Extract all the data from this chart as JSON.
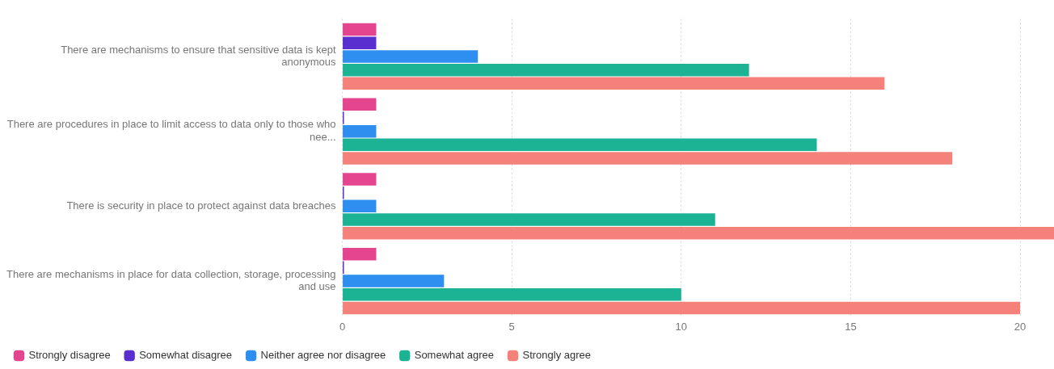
{
  "chart_data": {
    "type": "bar",
    "orientation": "horizontal",
    "categories": [
      "There are mechanisms to ensure that sensitive data is kept anonymous",
      "There are procedures in place to limit access to data only to those who nee...",
      "There is security in place to protect against data breaches",
      "There are mechanisms in place for data collection, storage, processing and use"
    ],
    "series": [
      {
        "name": "Strongly disagree",
        "color": "#e5458f",
        "values": [
          1,
          1,
          1,
          1
        ]
      },
      {
        "name": "Somewhat disagree",
        "color": "#5a2fcf",
        "values": [
          1,
          0,
          0,
          0
        ]
      },
      {
        "name": "Neither agree nor disagree",
        "color": "#2f8ff0",
        "values": [
          4,
          1,
          1,
          3
        ]
      },
      {
        "name": "Somewhat agree",
        "color": "#1bb394",
        "values": [
          12,
          14,
          11,
          10
        ]
      },
      {
        "name": "Strongly agree",
        "color": "#f4827b",
        "values": [
          16,
          18,
          21,
          20
        ]
      }
    ],
    "xlim": [
      0,
      21
    ],
    "xticks": [
      0,
      5,
      10,
      15,
      20
    ],
    "grid": "x",
    "legend": "bottom left"
  }
}
